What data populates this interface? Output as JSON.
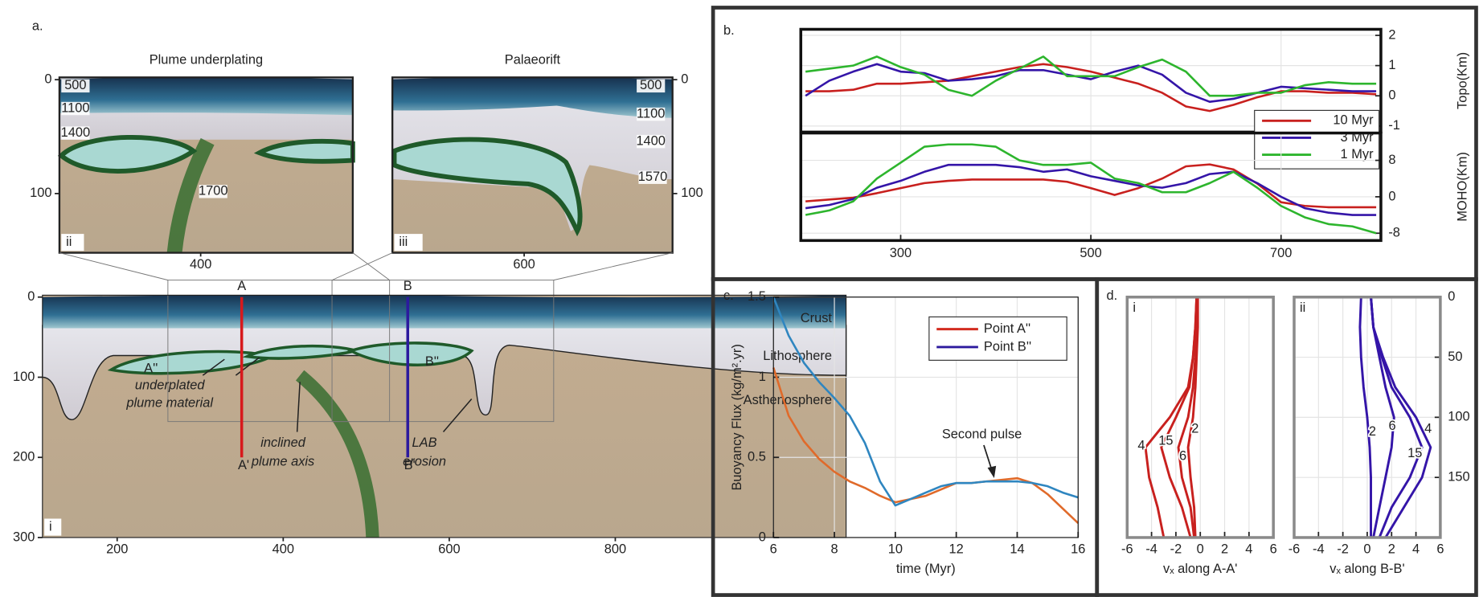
{
  "figure": {
    "labels": [
      "a.",
      "b.",
      "c.",
      "d."
    ]
  },
  "chart_data": [
    {
      "type": "section",
      "tag": "i",
      "xlim": [
        110,
        1078
      ],
      "ylim": [
        300,
        0
      ],
      "xticks": [
        200,
        400,
        600,
        800
      ],
      "yticks": [
        0,
        100,
        200,
        300
      ],
      "yaxis": "left",
      "layers": [
        "Crust",
        "Lithosphere",
        "Asthenosphere"
      ],
      "labels": [
        [
          "A''"
        ],
        [
          "B''"
        ],
        [
          "underplated",
          "plume material"
        ],
        [
          "inclined",
          "plume axis"
        ],
        [
          "LAB",
          "erosion"
        ]
      ],
      "profiles": [
        {
          "name": "A",
          "end_name": "A'",
          "x": 350,
          "depth": [
            0,
            200
          ],
          "color": "#d7191c"
        },
        {
          "name": "B",
          "end_name": "B'",
          "x": 550,
          "depth": [
            0,
            200
          ],
          "color": "#2c1a9e"
        }
      ]
    },
    {
      "type": "section",
      "title": "Plume underplating",
      "tag": "ii",
      "xlim": [
        270,
        540
      ],
      "ylim": [
        152,
        -2
      ],
      "xticks": [
        400
      ],
      "yticks": [
        0,
        100
      ],
      "yaxis": "left",
      "isotherms": [
        500,
        1100,
        1400,
        1700
      ]
    },
    {
      "type": "section",
      "title": "Palaeorift",
      "tag": "iii",
      "xlim": [
        473,
        743
      ],
      "ylim": [
        152,
        -2
      ],
      "xticks": [
        600
      ],
      "yticks": [
        0,
        100
      ],
      "yaxis": "right",
      "isotherms": [
        500,
        1100,
        1400,
        1570
      ]
    },
    {
      "type": "line",
      "x": [
        200,
        225,
        250,
        275,
        300,
        325,
        350,
        375,
        400,
        425,
        450,
        475,
        500,
        525,
        550,
        575,
        600,
        625,
        650,
        675,
        700,
        725,
        750,
        775,
        800
      ],
      "xlim": [
        195,
        805
      ],
      "ylim": [
        -1.2,
        2.2
      ],
      "yticks": [
        -1,
        0,
        1,
        2
      ],
      "ylabel": "Topo(Km)",
      "yaxis": "right",
      "grid": true,
      "legend": "lower right",
      "series": [
        {
          "name": "10 Myr",
          "color": "#c8201e",
          "values": [
            0.15,
            0.15,
            0.2,
            0.4,
            0.4,
            0.45,
            0.5,
            0.65,
            0.8,
            0.95,
            1.05,
            0.95,
            0.8,
            0.6,
            0.4,
            0.1,
            -0.35,
            -0.5,
            -0.3,
            -0.05,
            0.15,
            0.15,
            0.1,
            0.1,
            0.05
          ]
        },
        {
          "name": "3 Myr",
          "color": "#3415a8",
          "values": [
            0,
            0.5,
            0.8,
            1.05,
            0.8,
            0.75,
            0.5,
            0.55,
            0.65,
            0.85,
            0.85,
            0.7,
            0.55,
            0.8,
            1.0,
            0.7,
            0.1,
            -0.2,
            -0.1,
            0.1,
            0.3,
            0.25,
            0.2,
            0.15,
            0.15
          ]
        },
        {
          "name": "1 Myr",
          "color": "#2db52d",
          "values": [
            0.8,
            0.9,
            1.0,
            1.3,
            0.95,
            0.7,
            0.2,
            0,
            0.5,
            0.9,
            1.3,
            0.65,
            0.65,
            0.65,
            0.95,
            1.2,
            0.8,
            0,
            0,
            0.1,
            0.1,
            0.35,
            0.45,
            0.4,
            0.4
          ]
        }
      ]
    },
    {
      "type": "line",
      "x": [
        200,
        225,
        250,
        275,
        300,
        325,
        350,
        375,
        400,
        425,
        450,
        475,
        500,
        525,
        550,
        575,
        600,
        625,
        650,
        675,
        700,
        725,
        750,
        775,
        800
      ],
      "xlim": [
        195,
        805
      ],
      "ylim": [
        -9.6,
        14
      ],
      "xticks": [
        300,
        500,
        700
      ],
      "yticks": [
        -8,
        0,
        8
      ],
      "ylabel": "MOHO(Km)",
      "yaxis": "right",
      "grid": true,
      "series": [
        {
          "color": "#c8201e",
          "values": [
            -1,
            -0.6,
            -0.2,
            0.8,
            1.9,
            3,
            3.5,
            3.8,
            3.8,
            3.8,
            3.8,
            3.3,
            1.9,
            0.4,
            1.9,
            4,
            6.7,
            7.1,
            6,
            2.9,
            -1.2,
            -2,
            -2.3,
            -2.3,
            -2.3
          ]
        },
        {
          "color": "#3415a8",
          "values": [
            -2.5,
            -1.8,
            -0.5,
            2,
            3.5,
            5.5,
            7,
            7,
            7,
            6.5,
            5.5,
            6,
            4.5,
            3.5,
            2.5,
            2,
            3,
            5,
            5.5,
            3,
            0,
            -2.5,
            -3.5,
            -4,
            -4
          ]
        },
        {
          "color": "#2db52d",
          "values": [
            -4,
            -3,
            -1,
            4,
            7.5,
            11,
            11.5,
            11.5,
            11,
            8,
            7,
            7,
            7.5,
            4,
            3,
            1,
            1,
            3,
            5.5,
            2,
            -2,
            -4.5,
            -6,
            -6.5,
            -8
          ]
        }
      ]
    },
    {
      "type": "line",
      "x": [
        6,
        6.5,
        7,
        7.5,
        8,
        8.5,
        9,
        9.5,
        10,
        10.5,
        11,
        11.5,
        12,
        12.5,
        13,
        13.5,
        14,
        14.5,
        15,
        15.5,
        16
      ],
      "xlim": [
        6,
        16
      ],
      "ylim": [
        0,
        1.5
      ],
      "xticks": [
        6,
        8,
        10,
        12,
        14,
        16
      ],
      "yticks": [
        0,
        0.5,
        1,
        1.5
      ],
      "xlabel": "time (Myr)",
      "ylabel": "Buoyancy Flux (kg/m².yr)",
      "yaxis": "left",
      "grid": true,
      "legend": "upper right",
      "annotations": [
        "Second pulse"
      ],
      "series": [
        {
          "name": "Point A''",
          "color": "#e06a2a",
          "legend_color": "#d22b1f",
          "values": [
            1.06,
            0.76,
            0.6,
            0.49,
            0.41,
            0.35,
            0.31,
            0.26,
            0.22,
            0.24,
            0.26,
            0.3,
            0.34,
            0.34,
            0.35,
            0.36,
            0.37,
            0.34,
            0.27,
            0.18,
            0.09
          ]
        },
        {
          "name": "Point B''",
          "color": "#2f86c0",
          "legend_color": "#2c1a9e",
          "values": [
            1.5,
            1.26,
            1.09,
            0.97,
            0.87,
            0.76,
            0.59,
            0.35,
            0.2,
            0.24,
            0.28,
            0.32,
            0.34,
            0.34,
            0.35,
            0.35,
            0.35,
            0.34,
            0.32,
            0.28,
            0.25
          ]
        }
      ]
    },
    {
      "type": "profile",
      "tag": "i",
      "y": [
        0,
        25,
        50,
        75,
        100,
        125,
        150,
        175,
        200
      ],
      "xlim": [
        -6,
        6
      ],
      "ylim": [
        200,
        0
      ],
      "xticks": [
        -6,
        -4,
        -2,
        0,
        2,
        4,
        6
      ],
      "xlabel": "vₓ along A-A'",
      "grid": true,
      "series": [
        {
          "name": "2",
          "color": "#c8201e",
          "values": [
            -0.2,
            -0.2,
            -0.3,
            -0.4,
            -0.6,
            -1,
            -0.8,
            -0.5,
            -0.4
          ]
        },
        {
          "name": "4",
          "color": "#c8201e",
          "values": [
            -0.3,
            -0.4,
            -0.6,
            -1.0,
            -2.5,
            -4.5,
            -4.2,
            -3.5,
            -3.0
          ]
        },
        {
          "name": "15",
          "color": "#c8201e",
          "values": [
            -0.3,
            -0.4,
            -0.6,
            -0.9,
            -2.0,
            -3.2,
            -2.5,
            -1.5,
            -0.8
          ]
        },
        {
          "name": "6",
          "color": "#c8201e",
          "values": [
            -0.3,
            -0.3,
            -0.4,
            -0.6,
            -1.0,
            -1.8,
            -1.5,
            -0.8,
            -0.5
          ]
        }
      ]
    },
    {
      "type": "profile",
      "tag": "ii",
      "y": [
        0,
        25,
        50,
        75,
        100,
        125,
        150,
        175,
        200
      ],
      "xlim": [
        -6,
        6
      ],
      "ylim": [
        200,
        0
      ],
      "xticks": [
        -6,
        -4,
        -2,
        0,
        2,
        4,
        6
      ],
      "yticks": [
        0,
        50,
        100,
        150
      ],
      "yaxis": "right",
      "xlabel": "vₓ along B-B'",
      "grid": true,
      "series": [
        {
          "name": "2",
          "color": "#3415a8",
          "values": [
            -0.5,
            -0.6,
            -0.5,
            -0.3,
            0,
            0.2,
            0.3,
            0.3,
            0.3
          ]
        },
        {
          "name": "6",
          "color": "#3415a8",
          "values": [
            0.3,
            0.5,
            1,
            1.5,
            2.2,
            2.0,
            1.5,
            1.0,
            0.5
          ]
        },
        {
          "name": "4",
          "color": "#3415a8",
          "values": [
            0.3,
            0.5,
            1.2,
            2.0,
            3.5,
            4.5,
            3.5,
            2,
            1
          ]
        },
        {
          "name": "15",
          "color": "#3415a8",
          "values": [
            0.3,
            0.5,
            1.3,
            2.3,
            4.0,
            5.2,
            4.5,
            3,
            1.5
          ]
        }
      ]
    }
  ]
}
